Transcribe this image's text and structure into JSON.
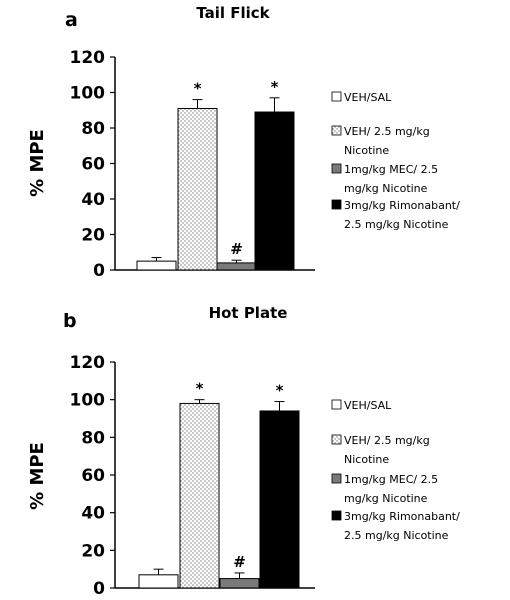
{
  "chart_data": [
    {
      "panel": "a",
      "type": "bar",
      "title": "Tail Flick",
      "ylabel": "% MPE",
      "ylim": [
        0,
        120
      ],
      "yticks": [
        0,
        20,
        40,
        60,
        80,
        100,
        120
      ],
      "legend_position": "right",
      "series": [
        {
          "legend": [
            "VEH/SAL"
          ],
          "value": 5,
          "error": 2,
          "marker": "",
          "fill": "white"
        },
        {
          "legend": [
            "VEH/ 2.5 mg/kg",
            "Nicotine"
          ],
          "value": 91,
          "error": 5,
          "marker": "*",
          "fill": "dotted"
        },
        {
          "legend": [
            "1mg/kg MEC/ 2.5",
            "mg/kg Nicotine"
          ],
          "value": 4,
          "error": 1.5,
          "marker": "#",
          "fill": "#7a7a7a"
        },
        {
          "legend": [
            "3mg/kg Rimonabant/",
            "2.5 mg/kg Nicotine"
          ],
          "value": 89,
          "error": 8,
          "marker": "*",
          "fill": "#000000"
        }
      ]
    },
    {
      "panel": "b",
      "type": "bar",
      "title": "Hot Plate",
      "ylabel": "% MPE",
      "ylim": [
        0,
        120
      ],
      "yticks": [
        0,
        20,
        40,
        60,
        80,
        100,
        120
      ],
      "legend_position": "right",
      "series": [
        {
          "legend": [
            "VEH/SAL"
          ],
          "value": 7,
          "error": 3,
          "marker": "",
          "fill": "white"
        },
        {
          "legend": [
            "VEH/ 2.5 mg/kg",
            "Nicotine"
          ],
          "value": 98,
          "error": 2,
          "marker": "*",
          "fill": "dotted"
        },
        {
          "legend": [
            "1mg/kg MEC/ 2.5",
            "mg/kg Nicotine"
          ],
          "value": 5,
          "error": 3,
          "marker": "#",
          "fill": "#7a7a7a"
        },
        {
          "legend": [
            "3mg/kg Rimonabant/",
            "2.5 mg/kg Nicotine"
          ],
          "value": 94,
          "error": 5,
          "marker": "*",
          "fill": "#000000"
        }
      ]
    }
  ]
}
